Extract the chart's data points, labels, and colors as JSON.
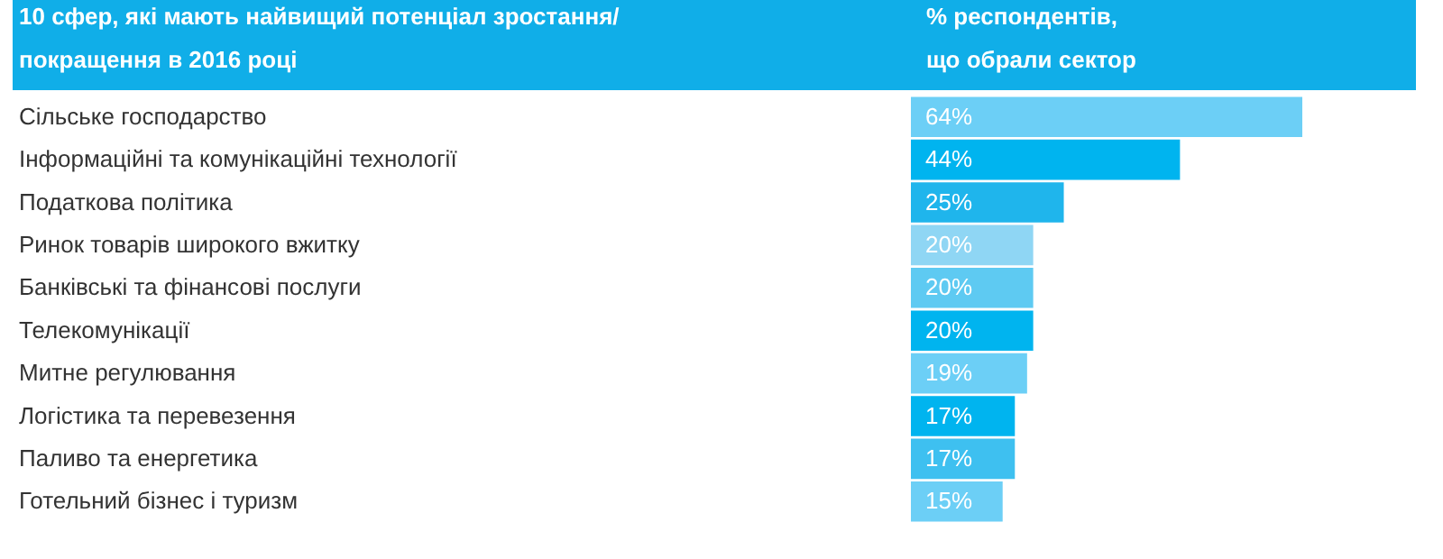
{
  "chart_data": {
    "type": "bar",
    "orientation": "horizontal",
    "ylabel": "10 сфер, які мають найвищий потенціал зростання/\nпокращення в 2016 році",
    "xlabel": "% респондентів,\nщо обрали сектор",
    "categories": [
      "Сільське господарство",
      "Інформаційні та комунікаційні технології",
      "Податкова політика",
      "Ринок товарів широкого вжитку",
      "Банківські та фінансові послуги",
      "Телекомунікації",
      "Митне регулювання",
      "Логістика та перевезення",
      "Паливо та енергетика",
      "Готельний бізнес і туризм"
    ],
    "values": [
      64,
      44,
      25,
      20,
      20,
      20,
      19,
      17,
      17,
      15
    ],
    "value_labels": [
      "64%",
      "44%",
      "25%",
      "20%",
      "20%",
      "20%",
      "19%",
      "17%",
      "17%",
      "15%"
    ],
    "colors": [
      "#6ccff6",
      "#00b4ef",
      "#1fb5ec",
      "#8fd6f4",
      "#5ecaf2",
      "#00b4ef",
      "#6ccff6",
      "#00b4ef",
      "#3ec0f0",
      "#6ccff6"
    ]
  }
}
